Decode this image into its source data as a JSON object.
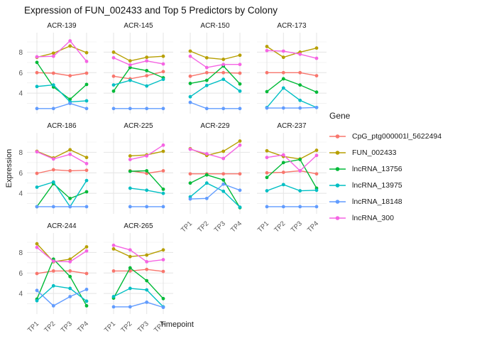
{
  "title": "Expression of FUN_002433 and Top 5 Predictors by Colony",
  "chart_data": {
    "type": "line",
    "faceted": true,
    "facet_by": "Colony",
    "xlabel": "Timepoint",
    "ylabel": "Expression",
    "legend_title": "Gene",
    "x_categories": [
      "TP1",
      "TP2",
      "TP3",
      "TP4"
    ],
    "y_ticks": [
      4,
      6,
      8
    ],
    "y_minor_ticks": [
      3,
      5,
      7,
      9
    ],
    "ylim": [
      2.0,
      9.9
    ],
    "grid": true,
    "legend_position": "right",
    "genes": [
      {
        "name": "CpG_ptg000001l_5622494",
        "color": "#F8766D"
      },
      {
        "name": "FUN_002433",
        "color": "#B79F00"
      },
      {
        "name": "lncRNA_13756",
        "color": "#00BA38"
      },
      {
        "name": "lncRNA_13975",
        "color": "#00BFC4"
      },
      {
        "name": "lncRNA_18148",
        "color": "#619CFF"
      },
      {
        "name": "lncRNA_300",
        "color": "#F564E3"
      }
    ],
    "facets": [
      {
        "name": "ACR-139",
        "show_y_labels": true,
        "show_x_labels": false,
        "values": [
          [
            6.0,
            5.95,
            5.7,
            5.95
          ],
          [
            7.5,
            7.9,
            8.6,
            7.95
          ],
          [
            7.0,
            4.6,
            3.4,
            4.85
          ],
          [
            4.65,
            4.8,
            3.15,
            3.25
          ],
          [
            2.5,
            2.5,
            3.0,
            2.5
          ],
          [
            7.55,
            7.6,
            9.1,
            7.1
          ]
        ]
      },
      {
        "name": "ACR-145",
        "show_y_labels": false,
        "show_x_labels": false,
        "values": [
          [
            5.65,
            5.4,
            5.7,
            6.1
          ],
          [
            8.0,
            7.15,
            7.5,
            7.6
          ],
          [
            4.2,
            6.5,
            6.2,
            5.5
          ],
          [
            4.8,
            5.25,
            4.7,
            5.35
          ],
          [
            2.5,
            2.5,
            2.5,
            2.5
          ],
          [
            7.45,
            6.75,
            7.15,
            6.85
          ]
        ]
      },
      {
        "name": "ACR-150",
        "show_y_labels": false,
        "show_x_labels": false,
        "values": [
          [
            5.65,
            6.0,
            6.0,
            5.95
          ],
          [
            8.1,
            7.45,
            7.3,
            7.7
          ],
          [
            4.95,
            5.25,
            6.65,
            4.9
          ],
          [
            3.65,
            4.75,
            5.35,
            4.2
          ],
          [
            3.1,
            2.5,
            2.5,
            2.5
          ],
          [
            7.6,
            6.5,
            6.8,
            6.8
          ]
        ]
      },
      {
        "name": "ACR-173",
        "show_y_labels": false,
        "show_x_labels": false,
        "values": [
          [
            6.0,
            6.0,
            6.0,
            5.7
          ],
          [
            8.55,
            7.5,
            8.0,
            8.4
          ],
          [
            4.15,
            5.4,
            4.8,
            4.1
          ],
          [
            2.6,
            4.5,
            3.3,
            2.6
          ],
          [
            2.55,
            2.55,
            2.55,
            2.6
          ],
          [
            8.15,
            8.1,
            7.8,
            7.4
          ]
        ]
      },
      {
        "name": "ACR-186",
        "show_y_labels": true,
        "show_x_labels": false,
        "values": [
          [
            5.95,
            6.3,
            6.2,
            6.25
          ],
          [
            8.1,
            7.45,
            8.25,
            7.5
          ],
          [
            2.7,
            4.95,
            3.5,
            4.15
          ],
          [
            4.6,
            5.1,
            2.7,
            5.25
          ],
          [
            2.7,
            2.7,
            2.7,
            2.7
          ],
          [
            8.05,
            7.35,
            7.8,
            6.9
          ]
        ]
      },
      {
        "name": "ACR-225",
        "show_y_labels": false,
        "show_x_labels": false,
        "values": [
          [
            null,
            6.2,
            5.95,
            6.2
          ],
          [
            null,
            7.65,
            7.75,
            8.1
          ],
          [
            null,
            6.15,
            6.2,
            4.4
          ],
          [
            null,
            4.5,
            4.3,
            4.0
          ],
          [
            null,
            2.7,
            2.7,
            2.7
          ],
          [
            null,
            7.3,
            7.65,
            8.7
          ]
        ]
      },
      {
        "name": "ACR-229",
        "show_y_labels": false,
        "show_x_labels": true,
        "values": [
          [
            5.9,
            5.9,
            5.9,
            5.9
          ],
          [
            8.35,
            7.7,
            8.1,
            9.1
          ],
          [
            5.0,
            5.8,
            5.3,
            2.6
          ],
          [
            3.65,
            5.0,
            4.2,
            2.65
          ],
          [
            3.45,
            3.5,
            4.9,
            4.3
          ],
          [
            8.3,
            7.85,
            7.4,
            8.7
          ]
        ]
      },
      {
        "name": "ACR-237",
        "show_y_labels": false,
        "show_x_labels": true,
        "values": [
          [
            6.0,
            6.05,
            6.2,
            5.9
          ],
          [
            8.15,
            7.6,
            7.35,
            8.2
          ],
          [
            5.55,
            7.0,
            7.3,
            4.5
          ],
          [
            4.25,
            4.85,
            4.25,
            4.3
          ],
          [
            2.7,
            2.7,
            2.7,
            2.7
          ],
          [
            7.5,
            7.75,
            6.2,
            7.7
          ]
        ]
      },
      {
        "name": "ACR-244",
        "show_y_labels": true,
        "show_x_labels": true,
        "values": [
          [
            5.95,
            6.2,
            6.2,
            5.95
          ],
          [
            8.85,
            7.1,
            7.35,
            8.55
          ],
          [
            3.45,
            7.35,
            5.65,
            2.8
          ],
          [
            3.3,
            4.75,
            4.5,
            3.25
          ],
          [
            4.3,
            2.8,
            3.7,
            4.4
          ],
          [
            8.5,
            7.15,
            7.1,
            8.15
          ]
        ]
      },
      {
        "name": "ACR-265",
        "show_y_labels": false,
        "show_x_labels": true,
        "values": [
          [
            6.2,
            6.2,
            6.35,
            6.15
          ],
          [
            8.35,
            7.6,
            7.75,
            8.25
          ],
          [
            3.55,
            6.5,
            5.25,
            3.5
          ],
          [
            3.7,
            4.5,
            4.35,
            2.7
          ],
          [
            2.7,
            2.7,
            3.15,
            2.65
          ],
          [
            8.7,
            8.25,
            7.1,
            7.3
          ]
        ]
      }
    ],
    "style": {
      "grid_major_color": "#E4E4E4",
      "grid_minor_color": "#F0F0F0",
      "tick_label_color": "#555555",
      "point_radius": 2.4,
      "line_width": 1.4
    }
  }
}
